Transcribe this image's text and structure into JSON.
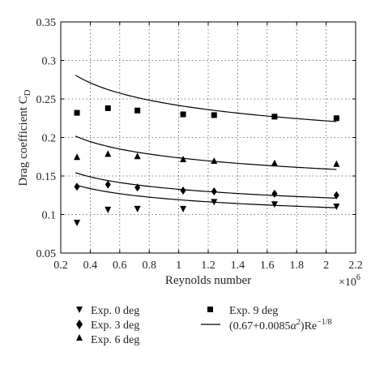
{
  "chart_data": {
    "type": "scatter",
    "title": "",
    "xlabel": "Reynolds number",
    "ylabel_main": "Drag coefficient C",
    "ylabel_sub": "D",
    "x_exponent_base": "×10",
    "x_exponent_power": "6",
    "xlim": [
      0.2,
      2.2
    ],
    "ylim": [
      0.05,
      0.35
    ],
    "xticks": [
      0.2,
      0.4,
      0.6,
      0.8,
      1,
      1.2,
      1.4,
      1.6,
      1.8,
      2,
      2.2
    ],
    "yticks": [
      0.05,
      0.1,
      0.15,
      0.2,
      0.25,
      0.3,
      0.35
    ],
    "xtick_labels": [
      "0.2",
      "0.4",
      "0.6",
      "0.8",
      "1",
      "1.2",
      "1.4",
      "1.6",
      "1.8",
      "2",
      "2.2"
    ],
    "ytick_labels": [
      "0.05",
      "0.1",
      "0.15",
      "0.2",
      "0.25",
      "0.3",
      "0.35"
    ],
    "grid": true,
    "legend_placement": "below",
    "series": [
      {
        "name": "Exp. 0 deg",
        "marker": "triangle-down",
        "x": [
          0.31,
          0.52,
          0.72,
          1.03,
          1.24,
          1.65,
          2.07
        ],
        "y": [
          0.09,
          0.107,
          0.108,
          0.108,
          0.117,
          0.114,
          0.111
        ]
      },
      {
        "name": "Exp. 3 deg",
        "marker": "diamond",
        "x": [
          0.31,
          0.52,
          0.72,
          1.03,
          1.24,
          1.65,
          2.07
        ],
        "y": [
          0.136,
          0.139,
          0.135,
          0.131,
          0.13,
          0.127,
          0.125
        ]
      },
      {
        "name": "Exp. 6 deg",
        "marker": "triangle-up",
        "x": [
          0.31,
          0.52,
          0.72,
          1.03,
          1.24,
          1.65,
          2.07
        ],
        "y": [
          0.174,
          0.178,
          0.175,
          0.171,
          0.169,
          0.166,
          0.165
        ]
      },
      {
        "name": "Exp. 9 deg",
        "marker": "square",
        "x": [
          0.31,
          0.52,
          0.72,
          1.03,
          1.24,
          1.65,
          2.07
        ],
        "y": [
          0.232,
          0.238,
          0.235,
          0.23,
          0.229,
          0.227,
          0.225
        ]
      }
    ],
    "model": {
      "legend_prefix": "(0.67+0.0085",
      "legend_alpha": "α",
      "legend_alpha_power": "2",
      "legend_mid": ")Re",
      "legend_re_power": "−1/8",
      "coef_a": 0.67,
      "coef_b": 0.0085,
      "re_exponent": -0.125,
      "alphas": [
        0,
        3,
        6,
        9
      ],
      "x_range": [
        0.3,
        2.07
      ],
      "x_scale": 1000000
    },
    "legend_order": [
      0,
      3,
      1,
      4,
      2
    ]
  }
}
